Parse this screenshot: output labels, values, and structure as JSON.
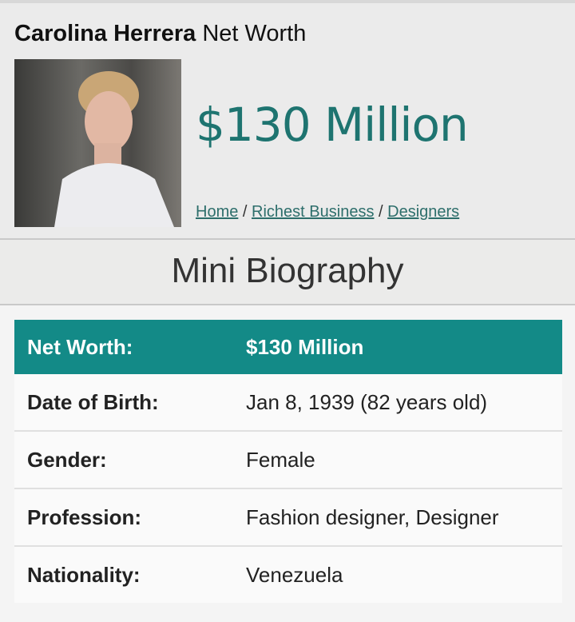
{
  "header": {
    "name": "Carolina Herrera",
    "title_suffix": "Net Worth",
    "net_worth": "$130 Million",
    "breadcrumb": [
      {
        "label": "Home"
      },
      {
        "label": "Richest Business"
      },
      {
        "label": "Designers"
      }
    ],
    "separator": "/"
  },
  "section_title": "Mini Biography",
  "bio": [
    {
      "label": "Net Worth:",
      "value": "$130 Million"
    },
    {
      "label": "Date of Birth:",
      "value": "Jan 8, 1939 (82 years old)"
    },
    {
      "label": "Gender:",
      "value": "Female"
    },
    {
      "label": "Profession:",
      "value": "Fashion designer, Designer"
    },
    {
      "label": "Nationality:",
      "value": "Venezuela"
    }
  ],
  "colors": {
    "accent": "#138a87",
    "net_worth_text": "#1e7470"
  }
}
